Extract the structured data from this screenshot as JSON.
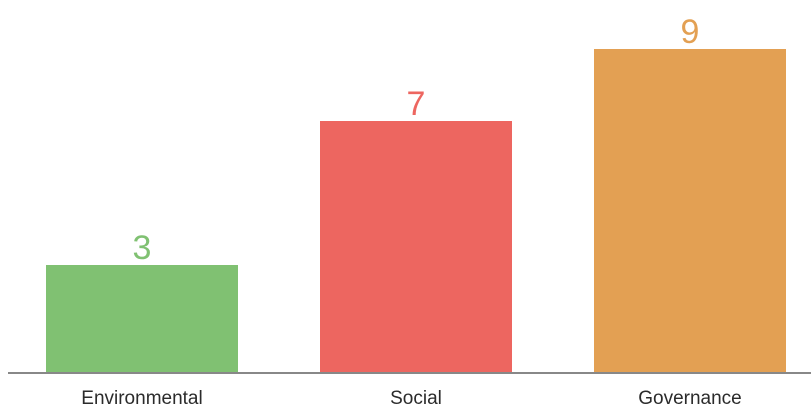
{
  "chart_data": {
    "type": "bar",
    "categories": [
      "Environmental",
      "Social",
      "Governance"
    ],
    "values": [
      3,
      7,
      9
    ],
    "colors": [
      "#80c172",
      "#ed6660",
      "#e3a053"
    ],
    "title": "",
    "xlabel": "",
    "ylabel": "",
    "ylim": [
      0,
      10
    ],
    "grid": false,
    "legend": "none",
    "data_labels": true,
    "axis_color": "#888888"
  }
}
